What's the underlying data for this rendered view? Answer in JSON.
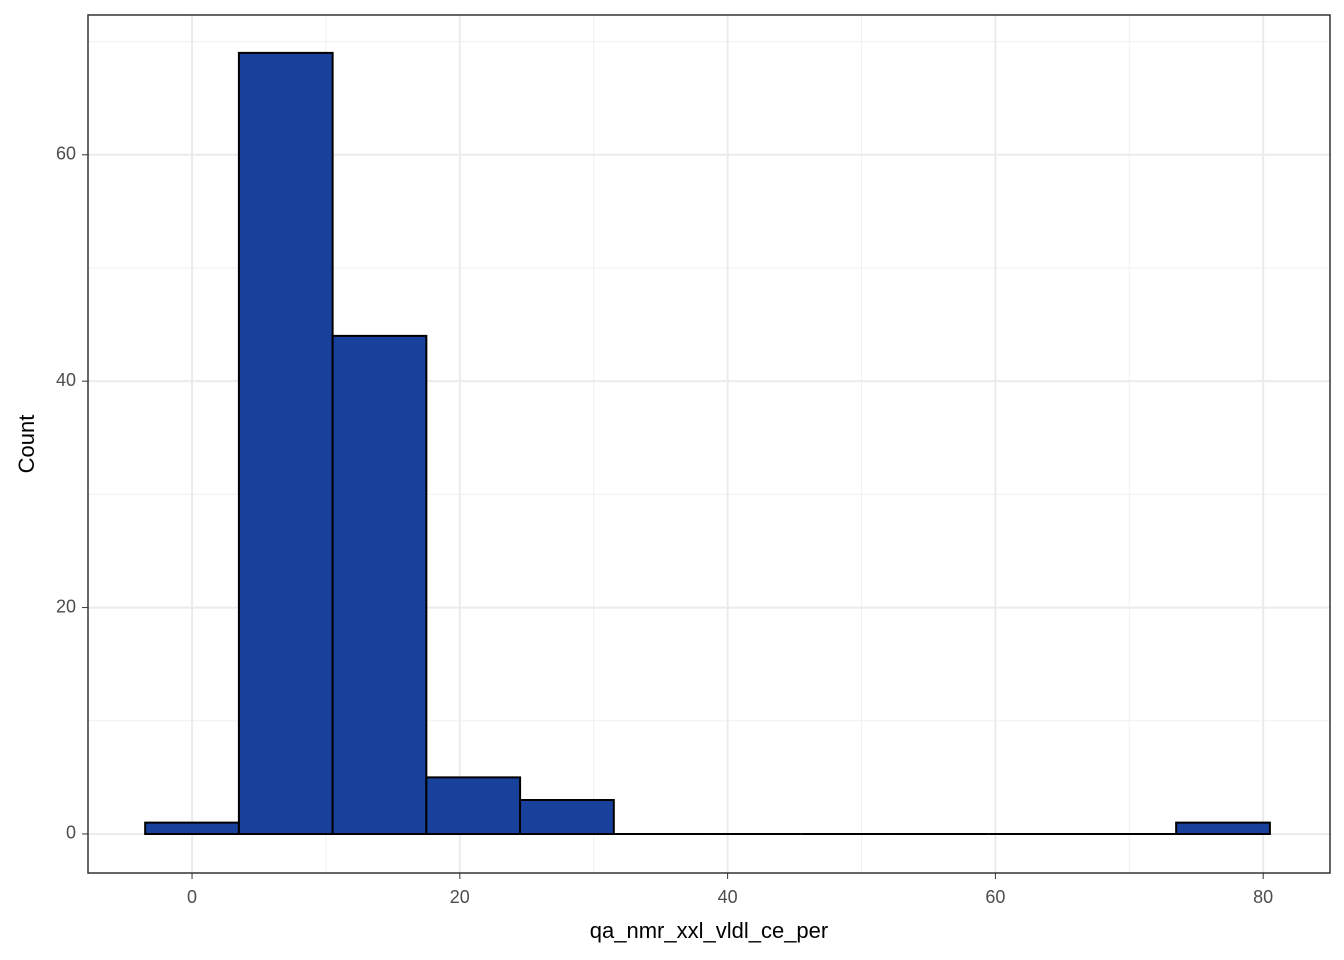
{
  "chart_data": {
    "type": "histogram",
    "x_label": "qa_nmr_xxl_vldl_ce_per",
    "y_label": "Count",
    "bins": [
      -3.5,
      3.5,
      10.5,
      17.5,
      24.5,
      31.5,
      38.5,
      45.5,
      52.5,
      59.5,
      66.5,
      73.5,
      80.5
    ],
    "values": [
      1,
      69,
      44,
      5,
      3,
      0,
      0,
      0,
      0,
      0,
      0,
      1
    ],
    "color": "#17419a",
    "edgecolor": "#000000",
    "xlim": [
      -7.77,
      84.99
    ],
    "ylim": [
      -3.45,
      72.35
    ],
    "xticks": [
      0,
      20,
      40,
      60,
      80
    ],
    "yticks": [
      0,
      20,
      40,
      60
    ],
    "x_minor_grid": [
      10,
      30,
      50,
      70
    ],
    "y_minor_grid": [
      10,
      30,
      50,
      70
    ],
    "grid": true
  }
}
